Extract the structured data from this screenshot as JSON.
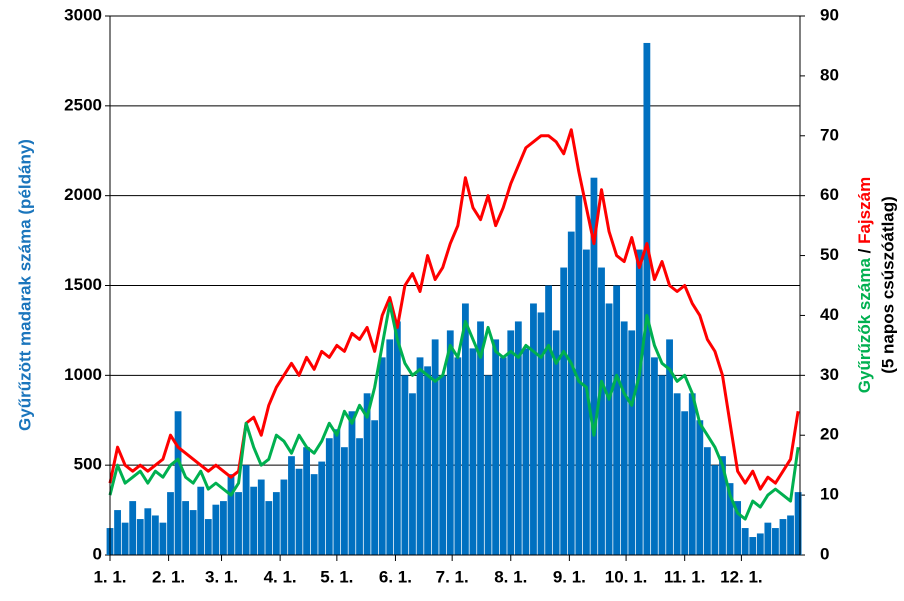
{
  "chart_data": {
    "type": "bar",
    "ylabel": "Gyűrűzött madarak száma (példány)",
    "y2label": {
      "green": "Gyűrűzők száma",
      "sep": " / ",
      "red": "Fajszám",
      "note": "(5 napos csúszóátlag)"
    },
    "xlim": [
      1,
      366
    ],
    "xticks": [
      {
        "value": 1,
        "label": "1. 1."
      },
      {
        "value": 32,
        "label": "2. 1."
      },
      {
        "value": 60,
        "label": "3. 1."
      },
      {
        "value": 91,
        "label": "4. 1."
      },
      {
        "value": 121,
        "label": "5. 1."
      },
      {
        "value": 152,
        "label": "6. 1."
      },
      {
        "value": 182,
        "label": "7. 1."
      },
      {
        "value": 213,
        "label": "8. 1."
      },
      {
        "value": 244,
        "label": "9. 1."
      },
      {
        "value": 274,
        "label": "10. 1."
      },
      {
        "value": 305,
        "label": "11. 1."
      },
      {
        "value": 335,
        "label": "12. 1."
      }
    ],
    "ylim": [
      0,
      3000
    ],
    "yticks": [
      0,
      500,
      1000,
      1500,
      2000,
      2500,
      3000
    ],
    "y2lim": [
      0,
      90
    ],
    "y2ticks": [
      0,
      10,
      20,
      30,
      40,
      50,
      60,
      70,
      80,
      90
    ],
    "grid": true,
    "x": [
      1,
      5,
      9,
      13,
      17,
      21,
      25,
      29,
      33,
      37,
      41,
      45,
      49,
      53,
      57,
      61,
      65,
      69,
      73,
      77,
      81,
      85,
      89,
      93,
      97,
      101,
      105,
      109,
      113,
      117,
      121,
      125,
      129,
      133,
      137,
      141,
      145,
      149,
      153,
      157,
      161,
      165,
      169,
      173,
      177,
      181,
      185,
      189,
      193,
      197,
      201,
      205,
      209,
      213,
      217,
      221,
      225,
      229,
      233,
      237,
      241,
      245,
      249,
      253,
      257,
      261,
      265,
      269,
      273,
      277,
      281,
      285,
      289,
      293,
      297,
      301,
      305,
      309,
      313,
      317,
      321,
      325,
      329,
      333,
      337,
      341,
      345,
      349,
      353,
      357,
      361,
      365
    ],
    "series": [
      {
        "type": "bar",
        "color": "#0070c0",
        "values": [
          150,
          250,
          180,
          300,
          200,
          260,
          220,
          180,
          350,
          800,
          300,
          250,
          380,
          200,
          280,
          300,
          450,
          350,
          500,
          380,
          420,
          300,
          350,
          420,
          550,
          480,
          600,
          450,
          520,
          650,
          700,
          600,
          800,
          650,
          900,
          750,
          1100,
          1200,
          1300,
          1000,
          900,
          1100,
          1050,
          1200,
          1000,
          1250,
          1100,
          1400,
          1150,
          1300,
          1000,
          1200,
          1100,
          1250,
          1300,
          1150,
          1400,
          1350,
          1500,
          1250,
          1600,
          1800,
          2000,
          1700,
          2100,
          1600,
          1400,
          1500,
          1300,
          1250,
          1700,
          2850,
          1100,
          1000,
          1200,
          900,
          800,
          900,
          750,
          600,
          500,
          550,
          400,
          300,
          150,
          100,
          120,
          180,
          150,
          200,
          220,
          350
        ]
      },
      {
        "type": "line",
        "axis": "y2",
        "color": "#ff0000",
        "values": [
          12,
          18,
          15,
          14,
          15,
          14,
          15,
          16,
          20,
          18,
          17,
          16,
          15,
          14,
          15,
          14,
          13,
          14,
          22,
          23,
          20,
          25,
          28,
          30,
          32,
          30,
          33,
          31,
          34,
          33,
          35,
          34,
          37,
          36,
          38,
          34,
          40,
          43,
          38,
          45,
          47,
          44,
          50,
          46,
          48,
          52,
          55,
          63,
          58,
          56,
          60,
          55,
          58,
          62,
          65,
          68,
          69,
          70,
          70,
          69,
          67,
          71,
          64,
          58,
          52,
          61,
          54,
          50,
          49,
          53,
          48,
          52,
          46,
          49,
          45,
          44,
          45,
          42,
          40,
          36,
          34,
          30,
          22,
          14,
          12,
          14,
          11,
          13,
          12,
          14,
          16,
          24
        ]
      },
      {
        "type": "line",
        "axis": "y2",
        "color": "#00b050",
        "values": [
          10,
          15,
          12,
          13,
          14,
          12,
          14,
          13,
          15,
          16,
          13,
          12,
          14,
          11,
          12,
          11,
          10,
          12,
          22,
          18,
          15,
          16,
          20,
          19,
          17,
          20,
          18,
          17,
          19,
          22,
          20,
          24,
          22,
          25,
          23,
          28,
          35,
          42,
          36,
          32,
          30,
          31,
          30,
          29,
          30,
          35,
          33,
          39,
          36,
          33,
          38,
          34,
          33,
          34,
          33,
          35,
          34,
          33,
          35,
          32,
          34,
          32,
          29,
          28,
          20,
          29,
          26,
          30,
          27,
          25,
          30,
          40,
          35,
          32,
          31,
          29,
          30,
          27,
          22,
          20,
          18,
          15,
          10,
          7,
          6,
          9,
          8,
          10,
          11,
          10,
          9,
          18
        ]
      }
    ]
  }
}
